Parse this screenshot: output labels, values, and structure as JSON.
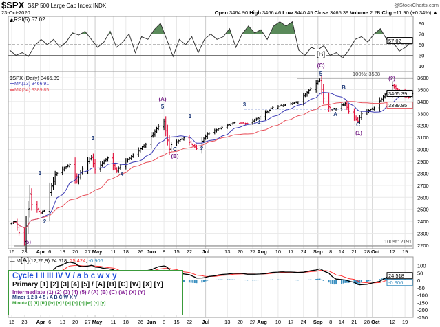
{
  "header": {
    "symbol": "$SPX",
    "name": "S&P 500 Large Cap Index",
    "exchange": "INDX",
    "date": "23-Oct-2020",
    "brand": "@StockCharts.com",
    "open_label": "Open",
    "open": "3464.90",
    "high_label": "High",
    "high": "3466.46",
    "low_label": "Low",
    "low": "3440.45",
    "close_label": "Close",
    "close": "3465.39",
    "volume_label": "Volume",
    "volume": "2.2B",
    "chg_label": "Chg",
    "chg": "+11.90 (+0.34%)"
  },
  "legend": {
    "cycle": "Cycle I II III IV V / a b c w x y",
    "primary": "Primary [1] [2] [3] [4] [5] / [A] [B] [C] [W] [X] [Y]",
    "intermediate": "Intermediate (1) (2) (3) (4) (5) / (A) (B) (C) (W) (X) (Y)",
    "minor": "Minor 1 2 3 4 5 / A B C W X Y",
    "minute": "Minute [i] [ii] [iii] [iv] [v] / [a] [b] [c] [w] [x] [y]"
  },
  "chart_data": [
    {
      "type": "line",
      "panel": "RSI",
      "title": "RSI(5) 57.02",
      "last": "57.02",
      "ylim": [
        0,
        100
      ],
      "yticks": [
        "90",
        "70",
        "50",
        "30",
        "10"
      ],
      "levels": [
        70,
        50,
        30
      ],
      "values": [
        40,
        30,
        35,
        28,
        48,
        60,
        50,
        60,
        45,
        55,
        72,
        68,
        75,
        60,
        45,
        55,
        75,
        45,
        55,
        70,
        35,
        65,
        60,
        78,
        90,
        60,
        28,
        60,
        50,
        65,
        35,
        60,
        70,
        60,
        65,
        80,
        45,
        70,
        85,
        72,
        78,
        60,
        85,
        93,
        85,
        93,
        40,
        30,
        45,
        40,
        48,
        30,
        35,
        25,
        40,
        60,
        65,
        55,
        70,
        80,
        60,
        55,
        38,
        45,
        57
      ],
      "annotations": [
        "[B]"
      ]
    },
    {
      "type": "ohlc",
      "panel": "Price",
      "title": "$SPX (Daily) 3465.39",
      "ma13_label": "MA(13) 3466.91",
      "ma34_label": "MA(34) 3389.85",
      "last_close": "3465.39",
      "last_ma34": "3389.85",
      "ylim": [
        2170,
        3640
      ],
      "yticks": [
        "3600",
        "3500",
        "3400",
        "3300",
        "3200",
        "3100",
        "3000",
        "2900",
        "2800",
        "2700",
        "2600",
        "2500",
        "2400",
        "2300",
        "2200"
      ],
      "colors": {
        "up": "#000000",
        "down": "#e0103a",
        "ma13": "#3b3bb5",
        "ma34": "#e8505a"
      },
      "closes": [
        [
          "2020-03-16",
          2386
        ],
        [
          "2020-03-18",
          2398
        ],
        [
          "2020-03-20",
          2305
        ],
        [
          "2020-03-23",
          2237
        ],
        [
          "2020-03-26",
          2630
        ],
        [
          "2020-03-27",
          2541
        ],
        [
          "2020-04-01",
          2470
        ],
        [
          "2020-04-03",
          2489
        ],
        [
          "2020-04-09",
          2790
        ],
        [
          "2020-04-14",
          2846
        ],
        [
          "2020-04-17",
          2875
        ],
        [
          "2020-04-21",
          2737
        ],
        [
          "2020-04-24",
          2837
        ],
        [
          "2020-04-29",
          2939
        ],
        [
          "2020-05-01",
          2831
        ],
        [
          "2020-05-08",
          2930
        ],
        [
          "2020-05-13",
          2820
        ],
        [
          "2020-05-15",
          2864
        ],
        [
          "2020-05-22",
          2955
        ],
        [
          "2020-05-29",
          3044
        ],
        [
          "2020-06-05",
          3194
        ],
        [
          "2020-06-08",
          3232
        ],
        [
          "2020-06-11",
          3002
        ],
        [
          "2020-06-12",
          3041
        ],
        [
          "2020-06-19",
          3097
        ],
        [
          "2020-06-26",
          3009
        ],
        [
          "2020-07-02",
          3130
        ],
        [
          "2020-07-10",
          3185
        ],
        [
          "2020-07-17",
          3225
        ],
        [
          "2020-07-24",
          3216
        ],
        [
          "2020-07-31",
          3271
        ],
        [
          "2020-08-07",
          3351
        ],
        [
          "2020-08-14",
          3373
        ],
        [
          "2020-08-21",
          3397
        ],
        [
          "2020-08-28",
          3508
        ],
        [
          "2020-09-02",
          3580
        ],
        [
          "2020-09-04",
          3427
        ],
        [
          "2020-09-08",
          3332
        ],
        [
          "2020-09-11",
          3341
        ],
        [
          "2020-09-16",
          3385
        ],
        [
          "2020-09-18",
          3319
        ],
        [
          "2020-09-23",
          3237
        ],
        [
          "2020-09-25",
          3298
        ],
        [
          "2020-10-02",
          3348
        ],
        [
          "2020-10-09",
          3477
        ],
        [
          "2020-10-12",
          3534
        ],
        [
          "2020-10-16",
          3483
        ],
        [
          "2020-10-21",
          3435
        ],
        [
          "2020-10-23",
          3465
        ]
      ],
      "annotations": {
        "w5": "(5)",
        "m1": "1",
        "m2": "2",
        "m3": "3",
        "m4": "4",
        "iA": "(A)",
        "m5a": "5",
        "mC": "C",
        "iB": "(B)",
        "m1b": "1",
        "m2b": "2",
        "m3b": "3",
        "m4b": "4",
        "m5b": "5",
        "iC": "(C)",
        "mA": "A",
        "mB": "B",
        "mC2": "C",
        "i1": "(1)",
        "i2": "(2)",
        "fib_high": "100%: 3588",
        "fib_low": "100%: 2191"
      }
    },
    {
      "type": "macd",
      "panel": "MACD",
      "title_prefix": "M",
      "title_wave": "[A]",
      "title_params": "(12,26,9)",
      "macd": "24.518",
      "signal": "25.424",
      "hist": "-0.906",
      "yticks": [
        "100",
        "50",
        "0",
        "-50",
        "-100",
        "-150",
        "-200",
        "-250"
      ],
      "colors": {
        "macd": "#000000",
        "signal": "#ff3030",
        "hist": "#3a8fc0"
      }
    }
  ],
  "x_axis": {
    "labels": [
      [
        "16",
        "2020-03-16"
      ],
      [
        "23",
        "2020-03-23"
      ],
      [
        "Apr",
        "2020-04-01"
      ],
      [
        "6",
        "2020-04-06"
      ],
      [
        "13",
        "2020-04-13"
      ],
      [
        "20",
        "2020-04-20"
      ],
      [
        "27",
        "2020-04-27"
      ],
      [
        "May",
        "2020-05-01"
      ],
      [
        "11",
        "2020-05-11"
      ],
      [
        "18",
        "2020-05-18"
      ],
      [
        "26",
        "2020-05-26"
      ],
      [
        "Jun",
        "2020-06-01"
      ],
      [
        "8",
        "2020-06-08"
      ],
      [
        "15",
        "2020-06-15"
      ],
      [
        "22",
        "2020-06-22"
      ],
      [
        "Jul",
        "2020-07-01"
      ],
      [
        "13",
        "2020-07-13"
      ],
      [
        "20",
        "2020-07-20"
      ],
      [
        "27",
        "2020-07-27"
      ],
      [
        "Aug",
        "2020-08-01"
      ],
      [
        "10",
        "2020-08-10"
      ],
      [
        "17",
        "2020-08-17"
      ],
      [
        "24",
        "2020-08-24"
      ],
      [
        "Sep",
        "2020-09-01"
      ],
      [
        "8",
        "2020-09-08"
      ],
      [
        "14",
        "2020-09-14"
      ],
      [
        "21",
        "2020-09-21"
      ],
      [
        "28",
        "2020-09-28"
      ],
      [
        "Oct",
        "2020-10-01"
      ],
      [
        "12",
        "2020-10-12"
      ],
      [
        "19",
        "2020-10-19"
      ]
    ]
  }
}
